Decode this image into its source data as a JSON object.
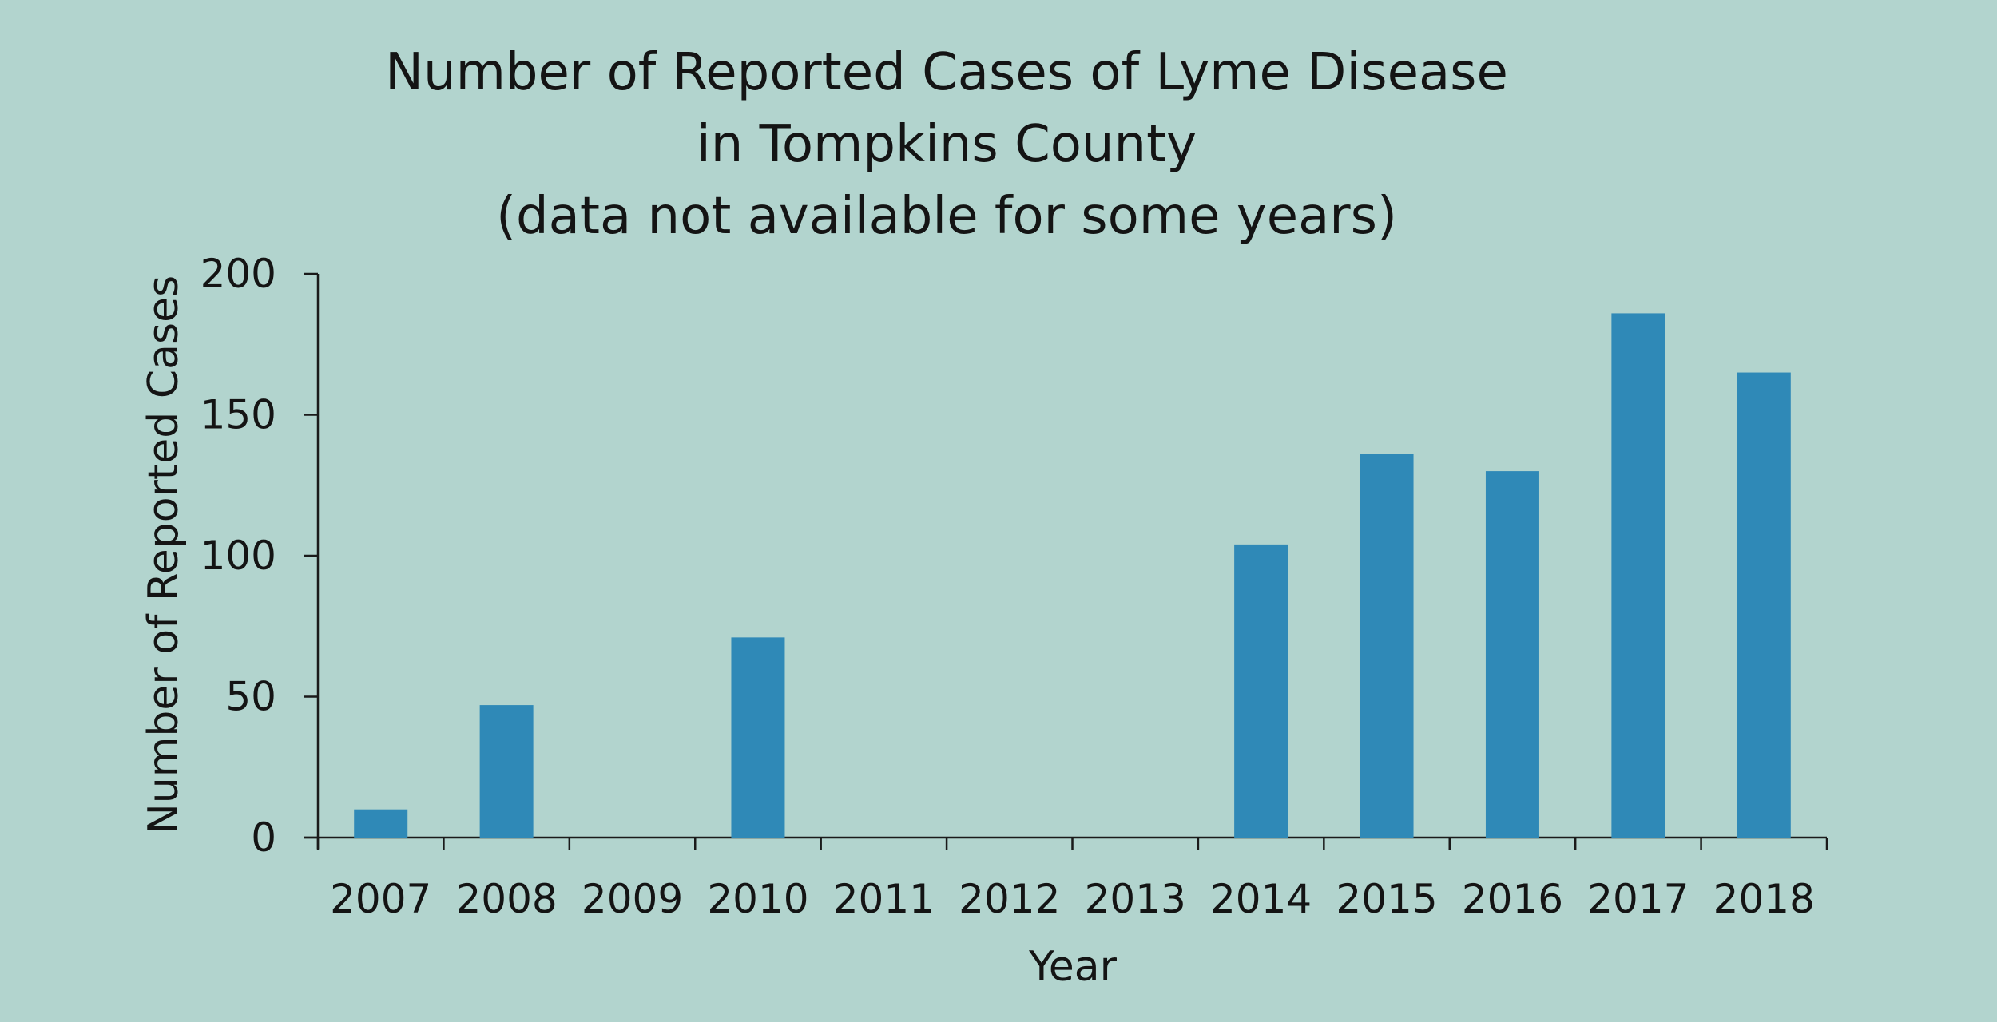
{
  "chart_data": {
    "type": "bar",
    "title": [
      "Number of Reported Cases of Lyme Disease",
      "in Tompkins County",
      "(data not available for some years)"
    ],
    "xlabel": "Year",
    "ylabel": "Number of Reported Cases",
    "categories": [
      "2007",
      "2008",
      "2009",
      "2010",
      "2011",
      "2012",
      "2013",
      "2014",
      "2015",
      "2016",
      "2017",
      "2018"
    ],
    "values": [
      10,
      47,
      null,
      71,
      null,
      null,
      null,
      104,
      136,
      130,
      186,
      165
    ],
    "ylim": [
      0,
      200
    ],
    "yticks": [
      0,
      50,
      100,
      150,
      200
    ],
    "grid": false,
    "legend": "none",
    "bar_color": "#2f89b7",
    "background_color": "#b2d4ce"
  }
}
